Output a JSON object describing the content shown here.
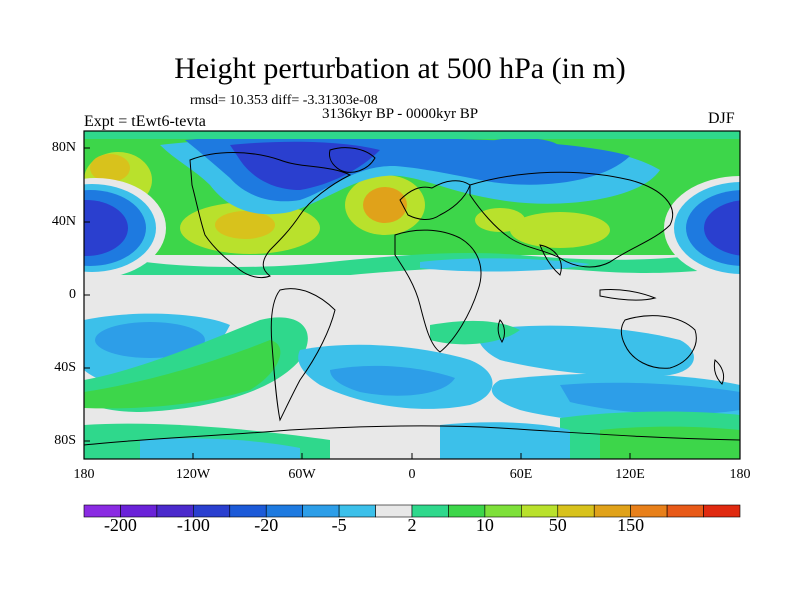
{
  "title": "Height perturbation at 500 hPa (in m)",
  "stats": "rmsd= 10.353 diff= -3.31303e-08",
  "period": "3136kyr BP - 0000kyr BP",
  "experiment": "Expt = tEwt6-tevta",
  "season": "DJF",
  "lat_labels": [
    "80N",
    "40N",
    "0",
    "40S",
    "80S"
  ],
  "lon_labels": [
    "180",
    "120W",
    "60W",
    "0",
    "60E",
    "120E",
    "180"
  ],
  "colorbar": {
    "labels": [
      "-200",
      "-100",
      "-20",
      "-5",
      "2",
      "10",
      "50",
      "150"
    ],
    "colors": [
      "#8a2be2",
      "#6a22d8",
      "#4b2acc",
      "#2a3fcf",
      "#1c5ad8",
      "#1e7ae0",
      "#2d9ee8",
      "#3cc0ea",
      "#e8e8e8",
      "#2fd88c",
      "#3dd64a",
      "#7ee03a",
      "#b9e12c",
      "#d8c21c",
      "#e0a21a",
      "#e8801a",
      "#e85a18",
      "#e02a10"
    ]
  },
  "palette": {
    "gray": "#e8e8e8",
    "cyan": "#3cc0ea",
    "lightblue": "#2d9ee8",
    "blue": "#1e7ae0",
    "darkblue": "#2a3fcf",
    "green": "#2fd88c",
    "brightgreen": "#3dd64a",
    "lime": "#b9e12c",
    "yellow": "#d8c21c",
    "orange": "#e0a21a"
  }
}
